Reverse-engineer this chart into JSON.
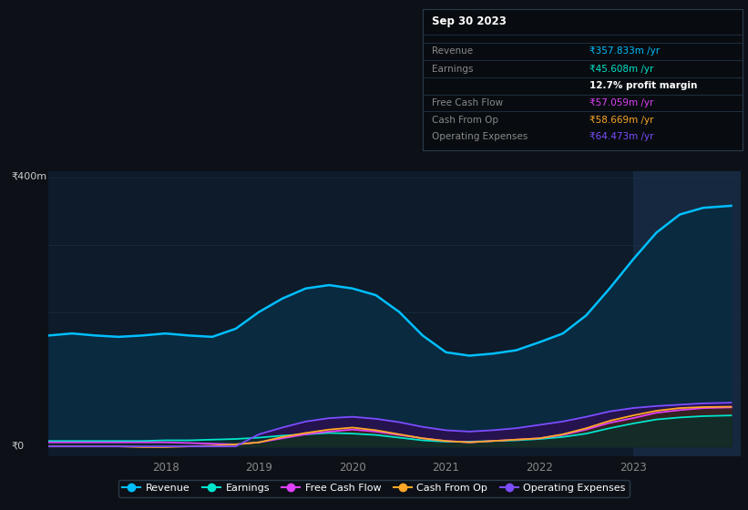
{
  "bg_color": "#0d1117",
  "plot_bg_color": "#0d1b2a",
  "grid_color": "#1a2e45",
  "x_years": [
    2016.75,
    2017.0,
    2017.25,
    2017.5,
    2017.75,
    2018.0,
    2018.25,
    2018.5,
    2018.75,
    2019.0,
    2019.25,
    2019.5,
    2019.75,
    2020.0,
    2020.25,
    2020.5,
    2020.75,
    2021.0,
    2021.25,
    2021.5,
    2021.75,
    2022.0,
    2022.25,
    2022.5,
    2022.75,
    2023.0,
    2023.25,
    2023.5,
    2023.75,
    2024.05
  ],
  "revenue": [
    165,
    168,
    165,
    163,
    165,
    168,
    165,
    163,
    175,
    200,
    220,
    235,
    240,
    235,
    225,
    200,
    165,
    140,
    135,
    138,
    143,
    155,
    168,
    195,
    235,
    278,
    318,
    345,
    355,
    358
  ],
  "earnings": [
    8,
    8,
    8,
    8,
    8,
    9,
    9,
    10,
    11,
    13,
    16,
    18,
    20,
    19,
    17,
    13,
    9,
    7,
    7,
    8,
    9,
    11,
    14,
    19,
    27,
    34,
    40,
    43,
    45,
    46
  ],
  "free_cash_flow": [
    6,
    6,
    6,
    6,
    6,
    6,
    5,
    4,
    3,
    6,
    12,
    18,
    22,
    25,
    22,
    17,
    12,
    8,
    6,
    8,
    10,
    12,
    17,
    25,
    35,
    42,
    50,
    54,
    57,
    58
  ],
  "cash_from_op": [
    0,
    0,
    0,
    0,
    -1,
    -1,
    0,
    1,
    3,
    6,
    14,
    20,
    25,
    28,
    24,
    18,
    12,
    8,
    6,
    8,
    10,
    12,
    18,
    27,
    38,
    46,
    53,
    57,
    58.5,
    59
  ],
  "operating_expenses": [
    0,
    0,
    0,
    0,
    0,
    0,
    0,
    0,
    0,
    18,
    28,
    37,
    42,
    44,
    41,
    36,
    29,
    24,
    22,
    24,
    27,
    32,
    37,
    44,
    52,
    57,
    60,
    62,
    64,
    65
  ],
  "revenue_color": "#00bfff",
  "earnings_color": "#00e5cc",
  "free_cash_flow_color": "#e040fb",
  "cash_from_op_color": "#ffa726",
  "operating_expenses_color": "#7c4dff",
  "revenue_fill": "#0a2a40",
  "earnings_fill": "#06302a",
  "fcf_fill": "#3a1245",
  "cashop_fill": "#3a2a08",
  "opex_fill": "#2a1050",
  "highlight_x_start": 2023.0,
  "highlight_x_end": 2024.15,
  "y_label_400": "₹400m",
  "y_label_0": "₹0",
  "ylim": [
    -15,
    410
  ],
  "xlim_start": 2016.75,
  "xlim_end": 2024.15,
  "x_ticks": [
    2018,
    2019,
    2020,
    2021,
    2022,
    2023
  ],
  "annotation_date": "Sep 30 2023",
  "annotation_rows": [
    {
      "label": "Revenue",
      "label_color": "#888888",
      "value": "₹357.833m /yr",
      "value_color": "#00bfff"
    },
    {
      "label": "Earnings",
      "label_color": "#888888",
      "value": "₹45.608m /yr",
      "value_color": "#00e5cc"
    },
    {
      "label": "",
      "label_color": "#888888",
      "value": "12.7% profit margin",
      "value_color": "#ffffff"
    },
    {
      "label": "Free Cash Flow",
      "label_color": "#888888",
      "value": "₹57.059m /yr",
      "value_color": "#e040fb"
    },
    {
      "label": "Cash From Op",
      "label_color": "#888888",
      "value": "₹58.669m /yr",
      "value_color": "#ffa726"
    },
    {
      "label": "Operating Expenses",
      "label_color": "#888888",
      "value": "₹64.473m /yr",
      "value_color": "#7c4dff"
    }
  ],
  "legend_items": [
    "Revenue",
    "Earnings",
    "Free Cash Flow",
    "Cash From Op",
    "Operating Expenses"
  ],
  "legend_colors": [
    "#00bfff",
    "#00e5cc",
    "#e040fb",
    "#ffa726",
    "#7c4dff"
  ]
}
